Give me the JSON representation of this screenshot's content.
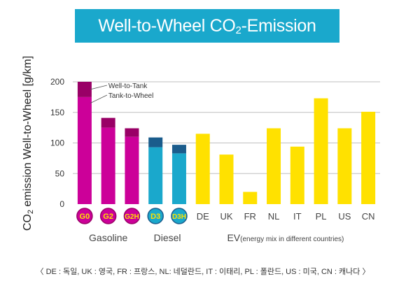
{
  "title_parts": {
    "pre": "Well-to-Wheel CO",
    "sub": "2",
    "post": "-Emission"
  },
  "ylabel_parts": {
    "pre": "CO",
    "sub": "2",
    "post": " emission Well-to-Wheel [g/km]"
  },
  "legend_annotations": [
    "Well-to-Tank",
    "Tank-to-Wheel"
  ],
  "groups": [
    {
      "label": "Gasoline",
      "note": ""
    },
    {
      "label": "Diesel",
      "note": ""
    },
    {
      "label": "EV",
      "note": "(energy mix in different countries)"
    }
  ],
  "footnote": "〈 DE : 독일, UK : 영국, FR : 프랑스, NL: 네덜란드, IT : 이태리, PL : 폴란드,  US : 미국, CN : 캐나다 〉",
  "colors": {
    "gasoline": "#cc0099",
    "gasoline_top": "#990066",
    "diesel": "#1aa8cc",
    "diesel_top": "#1a5c8c",
    "ev": "#ffe100",
    "badge_label": "#ffe100",
    "grid": "#bfbfbf",
    "title_bg": "#1aa8cc"
  },
  "chart_data": {
    "type": "bar",
    "stacked": true,
    "categories": [
      "G0",
      "G2",
      "G2H",
      "D3",
      "D3H",
      "DE",
      "UK",
      "FR",
      "NL",
      "IT",
      "PL",
      "US",
      "CN"
    ],
    "series": [
      {
        "name": "Tank-to-Wheel",
        "values": [
          175,
          125,
          110,
          93,
          83,
          115,
          81,
          20,
          124,
          94,
          173,
          124,
          151
        ]
      },
      {
        "name": "Well-to-Tank",
        "values": [
          25,
          16,
          14,
          16,
          14,
          0,
          0,
          0,
          0,
          0,
          0,
          0,
          0
        ]
      }
    ],
    "group_of_category": [
      "Gasoline",
      "Gasoline",
      "Gasoline",
      "Diesel",
      "Diesel",
      "EV",
      "EV",
      "EV",
      "EV",
      "EV",
      "EV",
      "EV",
      "EV"
    ],
    "yticks": [
      0,
      50,
      100,
      150,
      200
    ],
    "ylim": [
      0,
      200
    ],
    "grid": true,
    "legend": "annotations on first bar"
  }
}
